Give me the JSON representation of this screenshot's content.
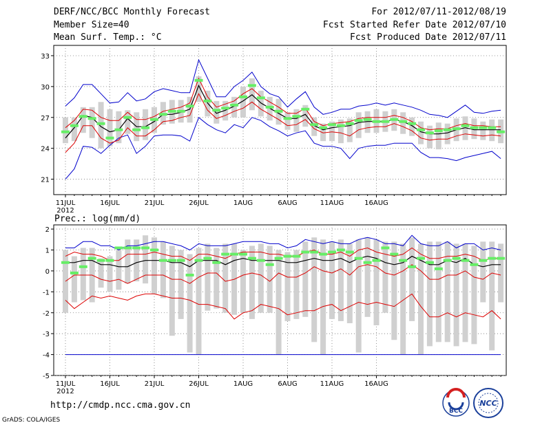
{
  "header": {
    "title": "DERF/NCC/BCC Monthly Forecast",
    "member_size": "Member Size=40",
    "variable": "Mean Surf. Temp.: °C",
    "forecast_period": "For 2012/07/11-2012/08/19",
    "start_date": "Fcst Started Refer Date 2012/07/10",
    "produced_date": "Fcst Produced Date 2012/07/11"
  },
  "footer": {
    "url": "http://cmdp.ncc.cma.gov.cn",
    "credit": "GrADS: COLA/IGES",
    "logo_bcc": "BCC",
    "logo_ncc": "NCC"
  },
  "colors": {
    "ensemble_range": "#0000cc",
    "percentile": "#dd0000",
    "mean": "#000000",
    "median": "#66ee66",
    "box": "#d0d0d0"
  },
  "chart_data": [
    {
      "type": "line",
      "title": "Mean Surf. Temp.: °C",
      "x_ticks": [
        "11JUL",
        "16JUL",
        "21JUL",
        "26JUL",
        "1AUG",
        "6AUG",
        "11AUG",
        "16AUG"
      ],
      "x_year": "2012",
      "ylim": [
        19.5,
        34
      ],
      "yticks": [
        21,
        24,
        27,
        30,
        33
      ],
      "grid": true,
      "series": {
        "max": [
          28.1,
          28.9,
          30.2,
          30.2,
          29.3,
          28.4,
          28.5,
          29.4,
          28.6,
          28.8,
          29.5,
          29.8,
          29.6,
          29.4,
          29.4,
          32.6,
          30.8,
          29.0,
          29.0,
          30.0,
          30.6,
          31.4,
          30.0,
          29.3,
          29.0,
          28.0,
          28.8,
          29.5,
          28.0,
          27.3,
          27.5,
          27.8,
          27.8,
          28.1,
          28.2,
          28.4,
          28.2,
          28.4,
          28.2,
          28.0,
          27.7,
          27.3,
          27.2,
          27.0,
          27.6,
          28.2,
          27.5,
          27.4,
          27.6,
          27.7
        ],
        "p90": [
          26.0,
          26.7,
          27.8,
          27.7,
          27.0,
          26.7,
          26.7,
          27.5,
          26.8,
          26.8,
          27.1,
          27.6,
          27.8,
          28.0,
          28.4,
          30.8,
          29.0,
          28.0,
          28.3,
          28.6,
          29.3,
          29.8,
          29.0,
          28.5,
          28.0,
          27.4,
          27.4,
          27.9,
          26.6,
          26.2,
          26.4,
          26.5,
          26.6,
          26.9,
          27.0,
          27.0,
          27.0,
          27.2,
          27.0,
          26.6,
          26.0,
          25.8,
          25.9,
          25.9,
          26.2,
          26.4,
          26.2,
          26.2,
          26.1,
          26.1
        ],
        "mean": [
          25.0,
          26.0,
          27.2,
          27.0,
          26.1,
          25.6,
          25.8,
          26.9,
          26.1,
          26.1,
          26.6,
          27.3,
          27.3,
          27.5,
          27.8,
          30.1,
          28.4,
          27.4,
          27.7,
          28.1,
          28.6,
          29.2,
          28.4,
          27.9,
          27.4,
          26.9,
          26.9,
          27.3,
          26.2,
          25.8,
          26.0,
          26.1,
          26.2,
          26.5,
          26.6,
          26.6,
          26.6,
          26.8,
          26.6,
          26.2,
          25.6,
          25.4,
          25.4,
          25.5,
          25.8,
          26.0,
          25.8,
          25.8,
          25.8,
          25.8
        ],
        "p10": [
          23.6,
          24.5,
          26.2,
          26.2,
          25.0,
          24.5,
          24.8,
          26.0,
          25.2,
          25.2,
          25.8,
          26.6,
          26.7,
          27.0,
          27.2,
          29.3,
          27.7,
          26.9,
          27.2,
          27.6,
          27.9,
          28.5,
          27.8,
          27.3,
          26.8,
          26.2,
          26.3,
          26.8,
          25.9,
          25.5,
          25.6,
          25.5,
          25.2,
          25.8,
          26.0,
          26.1,
          26.1,
          26.4,
          26.1,
          25.7,
          25.0,
          24.8,
          24.9,
          24.9,
          25.2,
          25.4,
          25.3,
          25.2,
          25.3,
          25.2
        ],
        "min": [
          21.0,
          22.0,
          24.2,
          24.1,
          23.5,
          24.3,
          25.0,
          25.3,
          23.5,
          24.2,
          25.2,
          25.3,
          25.3,
          25.2,
          24.7,
          27.0,
          26.3,
          25.8,
          25.5,
          26.3,
          26.0,
          27.0,
          26.7,
          26.1,
          25.7,
          25.2,
          25.5,
          25.7,
          24.5,
          24.2,
          24.2,
          24.0,
          23.0,
          24.0,
          24.2,
          24.3,
          24.3,
          24.5,
          24.5,
          24.5,
          23.6,
          23.1,
          23.1,
          23.0,
          22.8,
          23.1,
          23.3,
          23.5,
          23.7,
          23.0
        ],
        "box_top": [
          27.0,
          27.0,
          28.0,
          28.0,
          28.5,
          27.8,
          27.6,
          27.7,
          27.5,
          27.8,
          28.0,
          28.5,
          28.7,
          28.7,
          29.0,
          31.0,
          29.6,
          28.6,
          28.6,
          29.0,
          30.0,
          30.8,
          29.6,
          29.0,
          28.8,
          27.5,
          27.8,
          28.2,
          27.0,
          26.4,
          26.6,
          26.8,
          26.9,
          27.5,
          27.6,
          27.8,
          27.6,
          27.8,
          27.5,
          27.0,
          26.6,
          26.2,
          26.5,
          26.4,
          26.9,
          27.1,
          26.9,
          26.6,
          26.8,
          26.8
        ],
        "box_bottom": [
          24.5,
          24.7,
          25.5,
          25.0,
          24.0,
          24.2,
          24.5,
          25.4,
          24.7,
          24.8,
          25.5,
          26.3,
          26.4,
          26.5,
          26.5,
          28.5,
          27.1,
          26.4,
          26.7,
          27.0,
          27.0,
          27.7,
          27.1,
          26.7,
          26.3,
          25.8,
          25.6,
          26.1,
          25.2,
          24.7,
          24.7,
          24.5,
          24.6,
          25.0,
          25.5,
          25.5,
          25.6,
          25.7,
          25.4,
          25.2,
          24.4,
          24.0,
          23.9,
          24.4,
          24.7,
          24.8,
          24.9,
          24.8,
          24.7,
          24.5
        ],
        "median": [
          25.6,
          26.2,
          27.1,
          26.9,
          26.4,
          25.0,
          25.8,
          27.0,
          25.8,
          26.0,
          26.8,
          27.3,
          27.6,
          27.6,
          28.1,
          30.6,
          28.6,
          27.7,
          27.9,
          28.2,
          29.0,
          30.1,
          28.9,
          28.0,
          27.6,
          26.9,
          27.1,
          27.8,
          26.3,
          26.0,
          26.3,
          26.2,
          26.4,
          26.7,
          26.8,
          26.6,
          26.6,
          26.8,
          26.6,
          26.4,
          25.8,
          25.5,
          25.7,
          25.8,
          25.9,
          26.2,
          26.0,
          26.0,
          26.0,
          25.6
        ]
      }
    },
    {
      "type": "line",
      "title": "Prec.: log(mm/d)",
      "x_ticks": [
        "11JUL",
        "16JUL",
        "21JUL",
        "26JUL",
        "1AUG",
        "6AUG",
        "11AUG",
        "16AUG"
      ],
      "x_year": "2012",
      "ylim": [
        -5,
        2.2
      ],
      "yticks": [
        -5,
        -4,
        -3,
        -2,
        -1,
        0,
        1,
        2
      ],
      "grid": true,
      "series": {
        "max": [
          1.1,
          1.1,
          1.4,
          1.4,
          1.2,
          1.2,
          1.0,
          1.2,
          1.2,
          1.3,
          1.4,
          1.4,
          1.3,
          1.2,
          1.0,
          1.3,
          1.2,
          1.2,
          1.2,
          1.3,
          1.4,
          1.4,
          1.4,
          1.3,
          1.3,
          1.1,
          1.2,
          1.5,
          1.4,
          1.3,
          1.4,
          1.3,
          1.3,
          1.5,
          1.6,
          1.5,
          1.3,
          1.3,
          1.2,
          1.7,
          1.3,
          1.2,
          1.2,
          1.4,
          1.1,
          1.3,
          1.3,
          1.0,
          1.1,
          1.0
        ],
        "p90": [
          0.7,
          0.9,
          0.8,
          0.8,
          0.7,
          0.5,
          0.5,
          0.8,
          0.8,
          0.8,
          0.9,
          0.8,
          0.7,
          0.7,
          0.5,
          0.8,
          0.8,
          0.7,
          0.6,
          0.8,
          0.9,
          0.9,
          0.9,
          0.8,
          0.8,
          0.7,
          0.7,
          0.9,
          1.0,
          0.8,
          0.8,
          0.9,
          0.7,
          1.0,
          1.1,
          0.9,
          0.8,
          0.7,
          0.8,
          1.1,
          0.8,
          0.6,
          0.6,
          0.7,
          0.7,
          0.8,
          0.7,
          0.5,
          0.6,
          0.6
        ],
        "mean": [
          0.4,
          0.4,
          0.5,
          0.5,
          0.3,
          0.3,
          0.2,
          0.2,
          0.4,
          0.5,
          0.5,
          0.5,
          0.4,
          0.4,
          0.2,
          0.5,
          0.5,
          0.5,
          0.3,
          0.5,
          0.6,
          0.5,
          0.5,
          0.5,
          0.5,
          0.4,
          0.4,
          0.5,
          0.6,
          0.5,
          0.5,
          0.6,
          0.4,
          0.6,
          0.7,
          0.6,
          0.4,
          0.3,
          0.4,
          0.7,
          0.5,
          0.3,
          0.3,
          0.5,
          0.4,
          0.6,
          0.3,
          0.2,
          0.3,
          0.3
        ],
        "p10": [
          -0.5,
          -0.2,
          -0.2,
          -0.2,
          -0.4,
          -0.5,
          -0.4,
          -0.6,
          -0.4,
          -0.2,
          -0.2,
          -0.2,
          -0.4,
          -0.4,
          -0.6,
          -0.3,
          -0.1,
          -0.1,
          -0.5,
          -0.4,
          -0.2,
          -0.1,
          -0.2,
          -0.5,
          -0.1,
          -0.3,
          -0.3,
          -0.1,
          0.2,
          0.0,
          -0.1,
          0.1,
          -0.2,
          0.2,
          0.3,
          0.2,
          -0.1,
          -0.2,
          0.0,
          0.3,
          0.0,
          -0.4,
          -0.4,
          -0.2,
          -0.2,
          0.0,
          -0.3,
          -0.4,
          -0.1,
          -0.2
        ],
        "p5": [
          -1.4,
          -1.8,
          -1.5,
          -1.2,
          -1.3,
          -1.2,
          -1.3,
          -1.4,
          -1.2,
          -1.1,
          -1.1,
          -1.2,
          -1.3,
          -1.3,
          -1.4,
          -1.6,
          -1.6,
          -1.7,
          -1.8,
          -2.3,
          -2.0,
          -1.9,
          -1.6,
          -1.7,
          -1.8,
          -2.1,
          -2.0,
          -1.9,
          -1.9,
          -1.7,
          -1.6,
          -1.9,
          -1.7,
          -1.5,
          -1.6,
          -1.5,
          -1.6,
          -1.7,
          -1.4,
          -1.1,
          -1.7,
          -2.2,
          -2.2,
          -2.0,
          -2.2,
          -2.0,
          -2.1,
          -2.2,
          -1.9,
          -2.3
        ],
        "min": [
          -4.0,
          -4.0,
          -4.0,
          -4.0,
          -4.0,
          -4.0,
          -4.0,
          -4.0,
          -4.0,
          -4.0,
          -4.0,
          -4.0,
          -4.0,
          -4.0,
          -4.0,
          -4.0,
          -4.0,
          -4.0,
          -4.0,
          -4.0,
          -4.0,
          -4.0,
          -4.0,
          -4.0,
          -4.0,
          -4.0,
          -4.0,
          -4.0,
          -4.0,
          -4.0,
          -4.0,
          -4.0,
          -4.0,
          -4.0,
          -4.0,
          -4.0,
          -4.0,
          -4.0,
          -4.0,
          -4.0,
          -4.0,
          -4.0,
          -4.0,
          -4.0,
          -4.0,
          -4.0,
          -4.0,
          -4.0,
          -4.0,
          -4.0
        ],
        "box_top": [
          1.0,
          0.7,
          1.1,
          1.1,
          0.6,
          0.7,
          1.0,
          1.5,
          1.5,
          1.7,
          1.6,
          1.4,
          1.2,
          1.0,
          0.8,
          1.1,
          1.3,
          1.1,
          1.3,
          1.3,
          1.0,
          1.2,
          1.3,
          1.2,
          1.0,
          0.9,
          1.0,
          1.4,
          1.6,
          1.5,
          1.4,
          1.5,
          1.3,
          1.5,
          1.6,
          1.5,
          1.4,
          1.4,
          1.3,
          1.6,
          1.3,
          1.4,
          1.4,
          1.4,
          1.3,
          1.3,
          1.2,
          1.4,
          1.4,
          1.3
        ],
        "box_bottom": [
          -2.0,
          -1.5,
          -1.4,
          -1.5,
          -0.8,
          -1.0,
          -0.9,
          -0.6,
          -0.5,
          -0.6,
          -1.1,
          -1.3,
          -3.1,
          -2.3,
          -3.9,
          -4.0,
          -1.9,
          -1.8,
          -2.0,
          -2.1,
          -2.0,
          -2.3,
          -2.0,
          -2.0,
          -4.0,
          -2.4,
          -2.3,
          -2.2,
          -3.4,
          -4.0,
          -2.3,
          -2.4,
          -2.5,
          -3.9,
          -2.2,
          -2.6,
          -2.0,
          -3.3,
          -4.0,
          -2.4,
          -4.0,
          -3.6,
          -3.4,
          -3.4,
          -3.6,
          -3.4,
          -3.5,
          -1.5,
          -3.8,
          -1.5
        ],
        "median": [
          0.4,
          -0.1,
          0.2,
          0.6,
          0.5,
          0.5,
          1.1,
          1.1,
          1.1,
          1.1,
          1.0,
          0.5,
          0.5,
          0.5,
          -0.2,
          0.5,
          0.6,
          0.4,
          0.8,
          0.8,
          0.8,
          0.6,
          0.5,
          0.3,
          0.6,
          0.7,
          0.7,
          0.9,
          0.9,
          0.8,
          0.9,
          1.0,
          0.9,
          0.6,
          0.4,
          0.5,
          1.1,
          0.8,
          0.5,
          0.2,
          0.6,
          0.4,
          0.1,
          0.5,
          0.6,
          0.5,
          0.3,
          0.5,
          0.6,
          0.6
        ]
      }
    }
  ]
}
